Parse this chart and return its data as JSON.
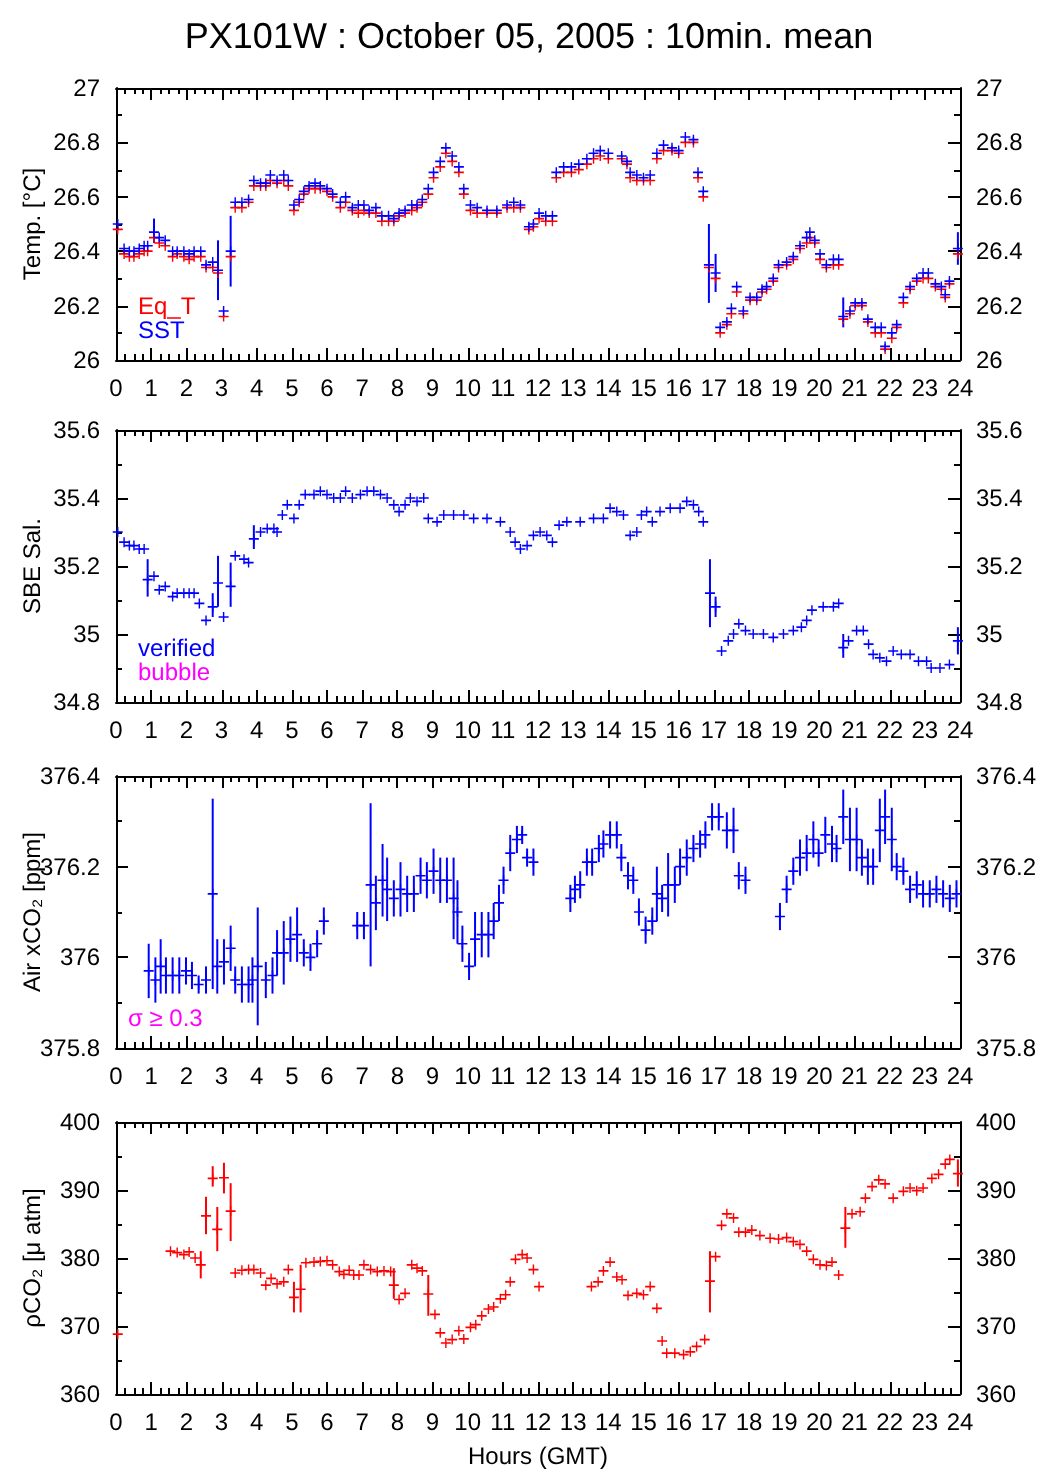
{
  "chart_data": [
    {
      "type": "scatter",
      "title": "PX101W : October 05, 2005 : 10min. mean",
      "ylabel": "Temp. [°C]",
      "marker": "cross",
      "legend": "bottom left",
      "xlim": [
        0,
        24
      ],
      "xticks": [
        0,
        1,
        2,
        3,
        4,
        5,
        6,
        7,
        8,
        9,
        10,
        11,
        12,
        13,
        14,
        15,
        16,
        17,
        18,
        19,
        20,
        21,
        22,
        23,
        24
      ],
      "ylim": [
        26,
        27
      ],
      "yticks": [
        26,
        26.2,
        26.4,
        26.6,
        26.8,
        27
      ],
      "y2lim": [
        26,
        27
      ],
      "y2ticks": [
        26,
        26.2,
        26.4,
        26.6,
        26.8,
        27
      ],
      "x": [
        0.05,
        0.23,
        0.38,
        0.51,
        0.66,
        0.8,
        0.9,
        1.08,
        1.23,
        1.4,
        1.61,
        1.74,
        1.93,
        2.08,
        2.22,
        2.41,
        2.56,
        2.75,
        2.9,
        3.06,
        3.26,
        3.39,
        3.58,
        3.77,
        3.92,
        4.11,
        4.26,
        4.39,
        4.58,
        4.77,
        4.9,
        5.06,
        5.21,
        5.34,
        5.49,
        5.66,
        5.81,
        6.0,
        6.16,
        6.38,
        6.53,
        6.72,
        6.89,
        7.05,
        7.2,
        7.39,
        7.56,
        7.75,
        7.9,
        8.05,
        8.22,
        8.41,
        8.56,
        8.71,
        8.88,
        9.03,
        9.22,
        9.38,
        9.56,
        9.75,
        9.89,
        10.08,
        10.27,
        10.55,
        10.83,
        11.12,
        11.31,
        11.5,
        11.74,
        11.87,
        12.03,
        12.22,
        12.41,
        12.52,
        12.73,
        12.95,
        13.16,
        13.39,
        13.58,
        13.77,
        14.0,
        14.38,
        14.53,
        14.62,
        14.81,
        15.0,
        15.19,
        15.38,
        15.57,
        15.81,
        16.0,
        16.19,
        16.42,
        16.55,
        16.7,
        16.86,
        17.05,
        17.18,
        17.37,
        17.5,
        17.65,
        17.84,
        18.03,
        18.22,
        18.37,
        18.5,
        18.69,
        18.84,
        19.07,
        19.26,
        19.45,
        19.64,
        19.73,
        19.87,
        20.02,
        20.2,
        20.4,
        20.55,
        20.68,
        20.87,
        21.02,
        21.21,
        21.38,
        21.59,
        21.76,
        21.87,
        22.06,
        22.2,
        22.39,
        22.58,
        22.77,
        22.95,
        23.1,
        23.3,
        23.47,
        23.58,
        23.7,
        23.94
      ],
      "series": [
        {
          "name": "Eq_T",
          "color": "#ff0000",
          "values": [
            26.48,
            26.39,
            26.38,
            26.38,
            26.39,
            26.4,
            26.4,
            26.45,
            26.43,
            26.42,
            26.38,
            26.39,
            26.38,
            26.37,
            26.38,
            26.38,
            26.34,
            26.34,
            26.32,
            26.16,
            26.38,
            26.56,
            26.56,
            26.58,
            26.64,
            26.64,
            26.64,
            26.66,
            26.65,
            26.66,
            26.64,
            26.55,
            26.58,
            26.61,
            26.63,
            26.63,
            26.63,
            26.62,
            26.6,
            26.56,
            26.58,
            26.55,
            26.54,
            26.55,
            26.54,
            26.54,
            26.51,
            26.51,
            26.51,
            26.53,
            26.54,
            26.55,
            26.56,
            26.58,
            26.61,
            26.67,
            26.71,
            26.76,
            26.73,
            26.69,
            26.61,
            26.55,
            26.54,
            26.54,
            26.54,
            26.56,
            26.56,
            26.56,
            26.48,
            26.49,
            26.52,
            26.51,
            26.51,
            26.67,
            26.69,
            26.69,
            26.7,
            26.72,
            26.74,
            26.75,
            26.74,
            26.74,
            26.72,
            26.67,
            26.66,
            26.66,
            26.66,
            26.74,
            26.77,
            26.77,
            26.76,
            26.8,
            26.8,
            26.67,
            26.6,
            26.34,
            26.3,
            26.1,
            26.13,
            26.17,
            26.25,
            26.17,
            26.22,
            26.22,
            26.25,
            26.26,
            26.29,
            26.34,
            26.35,
            26.37,
            26.41,
            26.43,
            26.45,
            26.43,
            26.37,
            26.34,
            26.35,
            26.35,
            26.15,
            26.17,
            26.2,
            26.2,
            26.14,
            26.1,
            26.1,
            26.04,
            26.08,
            26.12,
            26.21,
            26.26,
            26.29,
            26.3,
            26.3,
            26.27,
            26.26,
            26.23,
            26.28,
            26.39
          ]
        },
        {
          "name": "SST",
          "color": "#0000ff",
          "values": [
            26.5,
            26.41,
            26.4,
            26.4,
            26.41,
            26.42,
            26.42,
            26.47,
            26.45,
            26.44,
            26.4,
            26.4,
            26.4,
            26.39,
            26.4,
            26.4,
            26.35,
            26.36,
            26.33,
            26.18,
            26.4,
            26.58,
            26.58,
            26.59,
            26.66,
            26.65,
            26.65,
            26.68,
            26.66,
            26.68,
            26.66,
            26.57,
            26.59,
            26.62,
            26.64,
            26.65,
            26.64,
            26.63,
            26.61,
            26.58,
            26.6,
            26.56,
            26.57,
            26.57,
            26.55,
            26.56,
            26.53,
            26.53,
            26.52,
            26.54,
            26.55,
            26.57,
            26.57,
            26.59,
            26.63,
            26.69,
            26.73,
            26.78,
            26.75,
            26.71,
            26.63,
            26.57,
            26.56,
            26.55,
            26.55,
            26.57,
            26.58,
            26.57,
            26.49,
            26.5,
            26.54,
            26.53,
            26.53,
            26.69,
            26.71,
            26.71,
            26.72,
            26.74,
            26.76,
            26.77,
            26.76,
            26.75,
            26.73,
            26.69,
            26.68,
            26.67,
            26.68,
            26.76,
            26.79,
            26.78,
            26.77,
            26.82,
            26.81,
            26.69,
            26.62,
            26.35,
            26.32,
            26.12,
            26.14,
            26.19,
            26.27,
            26.18,
            26.23,
            26.23,
            26.26,
            26.27,
            26.3,
            26.35,
            26.36,
            26.38,
            26.42,
            26.45,
            26.47,
            26.44,
            26.39,
            26.35,
            26.37,
            26.37,
            26.16,
            26.18,
            26.21,
            26.21,
            26.15,
            26.12,
            26.12,
            26.05,
            26.1,
            26.13,
            26.23,
            26.27,
            26.3,
            26.32,
            26.32,
            26.28,
            26.27,
            26.24,
            26.29,
            26.41
          ],
          "errors": [
            null,
            null,
            null,
            null,
            null,
            null,
            null,
            [
              26.43,
              26.52
            ],
            null,
            null,
            null,
            null,
            null,
            null,
            null,
            null,
            null,
            null,
            [
              26.22,
              26.44
            ],
            null,
            [
              26.27,
              26.53
            ],
            null,
            null,
            null,
            null,
            null,
            null,
            null,
            null,
            null,
            null,
            null,
            null,
            null,
            null,
            null,
            null,
            null,
            null,
            null,
            null,
            null,
            null,
            null,
            null,
            null,
            null,
            null,
            null,
            null,
            null,
            null,
            null,
            null,
            null,
            null,
            null,
            null,
            null,
            null,
            null,
            null,
            null,
            null,
            null,
            null,
            null,
            null,
            null,
            null,
            null,
            null,
            null,
            null,
            null,
            null,
            null,
            null,
            null,
            null,
            null,
            null,
            null,
            null,
            null,
            null,
            null,
            null,
            null,
            null,
            null,
            null,
            null,
            null,
            null,
            [
              26.21,
              26.5
            ],
            [
              26.25,
              26.39
            ],
            null,
            null,
            null,
            null,
            null,
            null,
            null,
            null,
            null,
            null,
            null,
            null,
            null,
            null,
            null,
            null,
            null,
            null,
            null,
            null,
            null,
            [
              26.12,
              26.23
            ],
            null,
            null,
            null,
            null,
            null,
            null,
            null,
            null,
            null,
            null,
            null,
            null,
            null,
            null,
            null,
            null,
            null,
            null,
            [
              26.35,
              26.47
            ]
          ]
        }
      ]
    },
    {
      "type": "scatter",
      "ylabel": "SBE Sal.",
      "marker": "cross",
      "legend": "bottom left",
      "xlim": [
        0,
        24
      ],
      "xticks": [
        0,
        1,
        2,
        3,
        4,
        5,
        6,
        7,
        8,
        9,
        10,
        11,
        12,
        13,
        14,
        15,
        16,
        17,
        18,
        19,
        20,
        21,
        22,
        23,
        24
      ],
      "ylim": [
        34.8,
        35.6
      ],
      "yticks": [
        34.8,
        35,
        35.2,
        35.4,
        35.6
      ],
      "y2lim": [
        34.8,
        35.6
      ],
      "y2ticks": [
        34.8,
        35,
        35.2,
        35.4,
        35.6
      ],
      "series": [
        {
          "name": "verified",
          "color": "#0000ff",
          "x": [
            0.05,
            0.23,
            0.38,
            0.51,
            0.66,
            0.8,
            0.9,
            1.08,
            1.23,
            1.4,
            1.61,
            1.74,
            1.93,
            2.08,
            2.22,
            2.37,
            2.56,
            2.75,
            2.9,
            3.06,
            3.26,
            3.39,
            3.64,
            3.77,
            3.92,
            4.11,
            4.3,
            4.49,
            4.58,
            4.73,
            4.87,
            5.06,
            5.21,
            5.38,
            5.63,
            5.81,
            6.0,
            6.19,
            6.38,
            6.53,
            6.72,
            6.95,
            7.14,
            7.33,
            7.52,
            7.71,
            7.9,
            8.05,
            8.22,
            8.37,
            8.56,
            8.75,
            8.88,
            9.13,
            9.32,
            9.6,
            9.89,
            10.17,
            10.55,
            10.93,
            11.21,
            11.35,
            11.5,
            11.69,
            11.87,
            12.06,
            12.25,
            12.41,
            12.6,
            12.82,
            13.2,
            13.58,
            13.86,
            14.05,
            14.24,
            14.43,
            14.62,
            14.81,
            14.94,
            15.09,
            15.25,
            15.47,
            15.76,
            16.04,
            16.23,
            16.42,
            16.57,
            16.7,
            16.89,
            17.05,
            17.22,
            17.41,
            17.56,
            17.71,
            17.9,
            18.12,
            18.41,
            18.69,
            18.98,
            19.26,
            19.49,
            19.64,
            19.79,
            20.11,
            20.4,
            20.55,
            20.68,
            20.83,
            21.06,
            21.25,
            21.4,
            21.53,
            21.72,
            21.91,
            22.1,
            22.33,
            22.58,
            22.82,
            23.05,
            23.18,
            23.43,
            23.7,
            23.94
          ],
          "values": [
            35.3,
            35.27,
            35.26,
            35.26,
            35.25,
            35.25,
            35.16,
            35.17,
            35.13,
            35.14,
            35.11,
            35.12,
            35.12,
            35.12,
            35.12,
            35.09,
            35.04,
            35.08,
            35.15,
            35.05,
            35.14,
            35.23,
            35.22,
            35.21,
            35.28,
            35.3,
            35.31,
            35.31,
            35.3,
            35.35,
            35.38,
            35.34,
            35.38,
            35.41,
            35.41,
            35.42,
            35.41,
            35.4,
            35.4,
            35.42,
            35.4,
            35.41,
            35.42,
            35.42,
            35.41,
            35.4,
            35.38,
            35.36,
            35.38,
            35.4,
            35.39,
            35.4,
            35.34,
            35.33,
            35.35,
            35.35,
            35.35,
            35.34,
            35.34,
            35.33,
            35.3,
            35.27,
            35.25,
            35.26,
            35.29,
            35.3,
            35.29,
            35.27,
            35.32,
            35.33,
            35.33,
            35.34,
            35.34,
            35.37,
            35.36,
            35.35,
            35.29,
            35.3,
            35.35,
            35.36,
            35.33,
            35.36,
            35.37,
            35.37,
            35.39,
            35.38,
            35.36,
            35.33,
            35.12,
            35.08,
            34.95,
            34.98,
            35.0,
            35.03,
            35.01,
            35.0,
            35.0,
            34.99,
            35.0,
            35.01,
            35.02,
            35.04,
            35.07,
            35.08,
            35.08,
            35.09,
            34.96,
            34.98,
            35.01,
            35.01,
            34.97,
            34.94,
            34.93,
            34.92,
            34.95,
            34.94,
            34.94,
            34.92,
            34.92,
            34.9,
            34.9,
            34.91,
            34.98
          ],
          "errors": [
            null,
            null,
            null,
            null,
            null,
            null,
            [
              35.11,
              35.22
            ],
            null,
            null,
            null,
            null,
            null,
            null,
            null,
            null,
            null,
            null,
            [
              35.05,
              35.12
            ],
            [
              35.08,
              35.23
            ],
            null,
            [
              35.08,
              35.21
            ],
            null,
            null,
            null,
            [
              35.25,
              35.32
            ],
            null,
            null,
            null,
            null,
            null,
            null,
            null,
            null,
            null,
            null,
            null,
            null,
            null,
            null,
            null,
            null,
            null,
            null,
            null,
            null,
            null,
            null,
            null,
            null,
            null,
            null,
            null,
            null,
            null,
            null,
            null,
            null,
            null,
            null,
            null,
            null,
            null,
            null,
            null,
            null,
            null,
            null,
            null,
            null,
            null,
            null,
            null,
            null,
            null,
            null,
            null,
            null,
            null,
            null,
            null,
            null,
            null,
            null,
            null,
            null,
            null,
            null,
            null,
            [
              35.02,
              35.22
            ],
            [
              35.05,
              35.11
            ],
            null,
            null,
            null,
            null,
            null,
            null,
            null,
            null,
            null,
            null,
            null,
            null,
            null,
            null,
            null,
            null,
            [
              34.93,
              35.0
            ],
            null,
            null,
            null,
            null,
            null,
            null,
            null,
            null,
            null,
            null,
            null,
            null,
            null,
            null,
            null,
            [
              34.94,
              35.02
            ]
          ]
        },
        {
          "name": "bubble",
          "color": "#ff00ff"
        }
      ]
    },
    {
      "type": "scatter",
      "ylabel": "Air xCO₂ [ppm]",
      "marker": "cross",
      "xlim": [
        0,
        24
      ],
      "xticks": [
        0,
        1,
        2,
        3,
        4,
        5,
        6,
        7,
        8,
        9,
        10,
        11,
        12,
        13,
        14,
        15,
        16,
        17,
        18,
        19,
        20,
        21,
        22,
        23,
        24
      ],
      "ylim": [
        375.8,
        376.4
      ],
      "yticks": [
        375.8,
        376,
        376.2,
        376.4
      ],
      "y2lim": [
        375.8,
        376.4
      ],
      "y2ticks": [
        375.8,
        376,
        376.2,
        376.4
      ],
      "series": [
        {
          "color": "#0000ff",
          "x": [
            0.93,
            1.12,
            1.27,
            1.42,
            1.61,
            1.8,
            1.99,
            2.16,
            2.35,
            2.56,
            2.75,
            2.88,
            3.07,
            3.26,
            3.39,
            3.58,
            3.77,
            3.88,
            4.03,
            4.26,
            4.45,
            4.58,
            4.77,
            4.96,
            5.15,
            5.34,
            5.53,
            5.72,
            5.91,
            6.86,
            7.05,
            7.24,
            7.39,
            7.58,
            7.71,
            7.9,
            8.09,
            8.28,
            8.47,
            8.66,
            8.84,
            9.03,
            9.22,
            9.41,
            9.6,
            9.71,
            9.85,
            10.04,
            10.21,
            10.4,
            10.59,
            10.74,
            10.89,
            11.02,
            11.21,
            11.4,
            11.55,
            11.69,
            11.87,
            12.92,
            13.05,
            13.2,
            13.39,
            13.54,
            13.73,
            13.86,
            14.05,
            14.24,
            14.37,
            14.56,
            14.71,
            14.87,
            15.06,
            15.25,
            15.38,
            15.53,
            15.7,
            15.89,
            16.04,
            16.23,
            16.42,
            16.61,
            16.76,
            16.95,
            17.14,
            17.37,
            17.56,
            17.71,
            17.9,
            18.88,
            19.07,
            19.26,
            19.45,
            19.64,
            19.83,
            19.98,
            20.17,
            20.36,
            20.49,
            20.68,
            20.87,
            21.06,
            21.21,
            21.38,
            21.53,
            21.72,
            21.87,
            22.06,
            22.2,
            22.39,
            22.58,
            22.77,
            22.95,
            23.14,
            23.33,
            23.52,
            23.71,
            23.9
          ],
          "values": [
            375.97,
            375.95,
            375.98,
            375.96,
            375.96,
            375.96,
            375.97,
            375.96,
            375.94,
            375.95,
            376.14,
            375.98,
            375.99,
            376.02,
            375.95,
            375.94,
            375.94,
            375.95,
            375.98,
            375.95,
            375.96,
            376.01,
            376.01,
            376.04,
            376.05,
            376.01,
            376.0,
            376.03,
            376.08,
            376.07,
            376.07,
            376.16,
            376.12,
            376.17,
            376.15,
            376.13,
            376.15,
            376.14,
            376.14,
            376.18,
            376.17,
            376.19,
            376.17,
            376.17,
            376.13,
            376.1,
            376.03,
            375.98,
            376.04,
            376.05,
            376.05,
            376.08,
            376.12,
            376.17,
            376.23,
            376.26,
            376.27,
            376.22,
            376.21,
            376.13,
            376.15,
            376.16,
            376.21,
            376.21,
            376.24,
            376.25,
            376.27,
            376.27,
            376.22,
            376.18,
            376.17,
            376.1,
            376.06,
            376.08,
            376.14,
            376.13,
            376.16,
            376.16,
            376.2,
            376.22,
            376.24,
            376.25,
            376.27,
            376.31,
            376.31,
            376.28,
            376.28,
            376.18,
            376.17,
            376.09,
            376.15,
            376.19,
            376.22,
            376.23,
            376.26,
            376.23,
            376.27,
            376.25,
            376.24,
            376.31,
            376.26,
            376.26,
            376.22,
            376.2,
            376.2,
            376.28,
            376.31,
            376.26,
            376.2,
            376.19,
            376.15,
            376.16,
            376.14,
            376.14,
            376.15,
            376.14,
            376.13,
            376.14
          ],
          "errors": [
            0.06,
            0.05,
            0.06,
            0.04,
            0.04,
            0.04,
            0.03,
            0.03,
            0.02,
            0.03,
            0.21,
            0.06,
            0.05,
            0.05,
            0.03,
            0.04,
            0.04,
            0.05,
            0.13,
            0.04,
            0.04,
            0.05,
            0.07,
            0.05,
            0.06,
            0.03,
            0.03,
            0.03,
            0.03,
            0.03,
            0.03,
            0.18,
            0.06,
            0.08,
            0.07,
            0.04,
            0.06,
            0.04,
            0.04,
            0.04,
            0.04,
            0.05,
            0.05,
            0.05,
            0.09,
            0.07,
            0.04,
            0.03,
            0.06,
            0.05,
            0.05,
            0.04,
            0.04,
            0.03,
            0.04,
            0.03,
            0.02,
            0.02,
            0.03,
            0.03,
            0.03,
            0.03,
            0.03,
            0.03,
            0.03,
            0.03,
            0.03,
            0.03,
            0.03,
            0.03,
            0.03,
            0.03,
            0.03,
            0.03,
            0.06,
            0.03,
            0.07,
            0.04,
            0.04,
            0.04,
            0.03,
            0.03,
            0.03,
            0.03,
            0.03,
            0.04,
            0.05,
            0.03,
            0.03,
            0.03,
            0.03,
            0.03,
            0.04,
            0.04,
            0.04,
            0.03,
            0.04,
            0.04,
            0.03,
            0.06,
            0.07,
            0.07,
            0.04,
            0.04,
            0.04,
            0.07,
            0.06,
            0.07,
            0.03,
            0.03,
            0.03,
            0.03,
            0.03,
            0.03,
            0.03,
            0.03,
            0.03,
            0.03
          ]
        },
        {
          "name": "σ ≥ 0.3",
          "color": "#ff00ff"
        }
      ]
    },
    {
      "type": "scatter",
      "ylabel": "ρCO₂ [μ atm]",
      "xlabel": "Hours (GMT)",
      "marker": "cross",
      "xlim": [
        0,
        24
      ],
      "xticks": [
        0,
        1,
        2,
        3,
        4,
        5,
        6,
        7,
        8,
        9,
        10,
        11,
        12,
        13,
        14,
        15,
        16,
        17,
        18,
        19,
        20,
        21,
        22,
        23,
        24
      ],
      "ylim": [
        360,
        400
      ],
      "yticks": [
        360,
        370,
        380,
        390,
        400
      ],
      "y2lim": [
        360,
        400
      ],
      "y2ticks": [
        360,
        370,
        380,
        390,
        400
      ],
      "series": [
        {
          "color": "#ff0000",
          "x": [
            0.05,
            1.55,
            1.74,
            1.93,
            2.08,
            2.25,
            2.41,
            2.56,
            2.75,
            2.88,
            3.07,
            3.26,
            3.39,
            3.58,
            3.77,
            3.92,
            4.11,
            4.26,
            4.41,
            4.58,
            4.77,
            4.9,
            5.06,
            5.25,
            5.4,
            5.63,
            5.81,
            6.0,
            6.16,
            6.35,
            6.48,
            6.63,
            6.76,
            6.91,
            7.05,
            7.24,
            7.43,
            7.62,
            7.81,
            7.9,
            8.05,
            8.22,
            8.41,
            8.56,
            8.71,
            8.88,
            9.07,
            9.22,
            9.38,
            9.56,
            9.75,
            9.89,
            10.08,
            10.23,
            10.4,
            10.59,
            10.74,
            10.93,
            11.08,
            11.21,
            11.36,
            11.55,
            11.69,
            11.87,
            12.03,
            13.52,
            13.71,
            13.86,
            14.05,
            14.24,
            14.39,
            14.56,
            14.81,
            15.0,
            15.19,
            15.38,
            15.53,
            15.66,
            15.89,
            16.14,
            16.33,
            16.51,
            16.74,
            16.89,
            17.05,
            17.22,
            17.37,
            17.56,
            17.71,
            17.9,
            18.08,
            18.31,
            18.6,
            18.84,
            19.07,
            19.26,
            19.45,
            19.64,
            19.83,
            20.02,
            20.2,
            20.36,
            20.55,
            20.74,
            20.93,
            21.16,
            21.31,
            21.5,
            21.69,
            21.87,
            22.1,
            22.39,
            22.58,
            22.77,
            22.95,
            23.2,
            23.39,
            23.58,
            23.71,
            23.94
          ],
          "values": [
            368.8,
            381.0,
            380.8,
            380.5,
            380.9,
            380.0,
            379.0,
            386.2,
            391.7,
            384.2,
            391.8,
            386.9,
            377.8,
            378.2,
            378.3,
            378.3,
            377.8,
            376.0,
            377.0,
            376.2,
            376.5,
            378.3,
            374.2,
            375.4,
            379.3,
            379.4,
            379.5,
            379.6,
            379.0,
            378.0,
            377.6,
            378.2,
            377.5,
            377.5,
            379.0,
            378.3,
            378.0,
            378.1,
            378.0,
            376.0,
            373.9,
            374.8,
            379.0,
            378.5,
            378.1,
            374.7,
            371.7,
            369.0,
            367.5,
            368.0,
            369.3,
            368.1,
            369.8,
            370.2,
            371.5,
            372.5,
            372.8,
            374.0,
            374.6,
            376.5,
            379.8,
            380.5,
            380.0,
            378.3,
            375.8,
            375.8,
            376.5,
            378.1,
            379.4,
            377.2,
            376.8,
            374.5,
            374.8,
            374.6,
            375.8,
            372.6,
            367.8,
            366.0,
            366.0,
            365.8,
            366.2,
            367.0,
            368.0,
            376.6,
            380.2,
            384.8,
            386.5,
            385.9,
            383.8,
            383.8,
            384.1,
            383.3,
            382.9,
            382.8,
            383.0,
            382.4,
            382.0,
            381.0,
            379.8,
            379.0,
            378.9,
            379.4,
            377.5,
            384.4,
            386.5,
            386.8,
            388.8,
            390.5,
            391.5,
            390.9,
            388.8,
            389.8,
            390.3,
            389.9,
            390.3,
            391.7,
            392.3,
            393.8,
            394.5,
            392.4
          ],
          "errors": [
            null,
            null,
            null,
            null,
            null,
            null,
            [
              377,
              381
            ],
            [
              383.5,
              389
            ],
            [
              390.5,
              393.5
            ],
            [
              381,
              387.5
            ],
            [
              389.5,
              394
            ],
            [
              382.5,
              391
            ],
            null,
            null,
            null,
            null,
            null,
            null,
            null,
            null,
            null,
            null,
            [
              372,
              376.5
            ],
            [
              372,
              379
            ],
            null,
            null,
            null,
            null,
            null,
            null,
            null,
            null,
            null,
            null,
            null,
            null,
            null,
            null,
            null,
            [
              374,
              378.5
            ],
            null,
            null,
            null,
            null,
            null,
            [
              371.5,
              377.5
            ],
            null,
            null,
            null,
            null,
            null,
            null,
            null,
            null,
            null,
            null,
            null,
            null,
            null,
            null,
            null,
            null,
            null,
            null,
            null,
            null,
            null,
            null,
            null,
            null,
            null,
            null,
            null,
            null,
            null,
            null,
            null,
            null,
            null,
            null,
            null,
            null,
            null,
            [
              372,
              381
            ],
            null,
            null,
            null,
            null,
            null,
            null,
            null,
            null,
            null,
            null,
            null,
            null,
            null,
            null,
            null,
            null,
            null,
            null,
            null,
            [
              381.5,
              387.5
            ],
            null,
            null,
            null,
            null,
            null,
            null,
            null,
            null,
            null,
            null,
            null,
            null,
            null,
            null,
            null,
            [
              390.5,
              394.5
            ]
          ]
        }
      ]
    }
  ]
}
